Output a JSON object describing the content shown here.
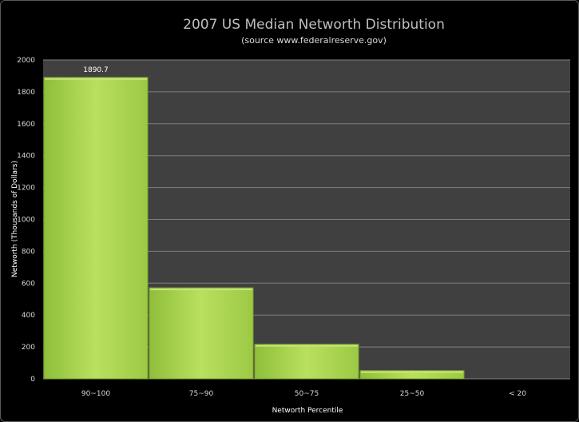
{
  "chart_data": {
    "type": "bar",
    "title": "2007 US Median Networth Distribution",
    "subtitle": "(source www.federalreserve.gov)",
    "xlabel": "Networth Percentile",
    "ylabel": "Networth (Thousands of Dollars)",
    "categories": [
      "90~100",
      "75~90",
      "50~75",
      "25~50",
      "< 20"
    ],
    "values": [
      1890.7,
      571,
      217,
      52,
      0
    ],
    "data_labels": [
      "1890.7",
      null,
      null,
      null,
      null
    ],
    "ylim": [
      0,
      2000
    ],
    "yticks": [
      0,
      200,
      400,
      600,
      800,
      1000,
      1200,
      1400,
      1600,
      1800,
      2000
    ],
    "grid": true,
    "legend": "none",
    "colors": {
      "bar": "#a6d04a",
      "bar_highlight": "#c6e676",
      "bar_edge": "#7a9e30",
      "plot_background": "#404040",
      "gridline": "#7f7f7f",
      "page_background": "#000000",
      "title": "#bfbfbf"
    }
  }
}
